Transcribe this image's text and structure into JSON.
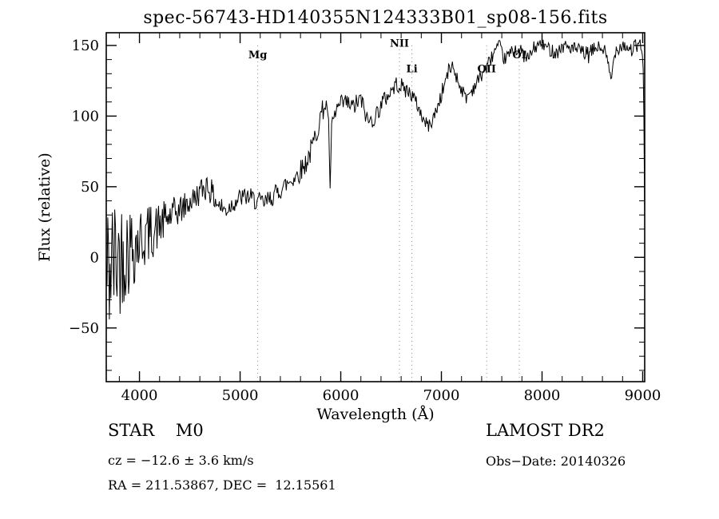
{
  "chart_data": {
    "type": "line",
    "title": "spec-56743-HD140355N124333B01_sp08-156.fits",
    "xlabel": "Wavelength (Å)",
    "ylabel": "Flux (relative)",
    "xlim": [
      3670,
      9020
    ],
    "ylim": [
      -88,
      159
    ],
    "xticks": [
      4000,
      5000,
      6000,
      7000,
      8000,
      9000
    ],
    "yticks": [
      -50,
      0,
      50,
      100,
      150
    ],
    "x_minor_step": 200,
    "y_minor_step": 10,
    "line_color": "#000000",
    "dotted_line_color": "#888888",
    "legend": "none",
    "grid": "off",
    "spectral_lines": [
      {
        "label": "Mg",
        "wavelength": 5175,
        "label_flux": 141
      },
      {
        "label": "NII",
        "wavelength": 6583,
        "label_flux": 149
      },
      {
        "label": "Li",
        "wavelength": 6707,
        "label_flux": 131
      },
      {
        "label": "OII",
        "wavelength": 7450,
        "label_flux": 131
      },
      {
        "label": "OI",
        "wavelength": 7774,
        "label_flux": 141
      }
    ],
    "noise_seed": 42,
    "spectrum_anchors": [
      [
        3670,
        -15,
        60
      ],
      [
        3720,
        -5,
        50
      ],
      [
        3780,
        0,
        45
      ],
      [
        3850,
        5,
        38
      ],
      [
        3920,
        8,
        32
      ],
      [
        4000,
        12,
        26
      ],
      [
        4080,
        16,
        22
      ],
      [
        4160,
        20,
        18
      ],
      [
        4250,
        26,
        14
      ],
      [
        4350,
        31,
        12
      ],
      [
        4450,
        36,
        10
      ],
      [
        4550,
        42,
        9
      ],
      [
        4620,
        48,
        9
      ],
      [
        4680,
        52,
        12
      ],
      [
        4740,
        42,
        8
      ],
      [
        4800,
        36,
        8
      ],
      [
        4860,
        33,
        7
      ],
      [
        4920,
        38,
        7
      ],
      [
        5000,
        42,
        7
      ],
      [
        5080,
        43,
        7
      ],
      [
        5160,
        40,
        7
      ],
      [
        5240,
        38,
        7
      ],
      [
        5320,
        43,
        7
      ],
      [
        5400,
        48,
        7
      ],
      [
        5480,
        53,
        7
      ],
      [
        5560,
        58,
        8
      ],
      [
        5640,
        65,
        8
      ],
      [
        5720,
        78,
        9
      ],
      [
        5790,
        98,
        9
      ],
      [
        5840,
        108,
        7
      ],
      [
        5875,
        105,
        6
      ],
      [
        5893,
        48,
        4
      ],
      [
        5910,
        92,
        6
      ],
      [
        5960,
        105,
        7
      ],
      [
        6040,
        110,
        7
      ],
      [
        6120,
        106,
        7
      ],
      [
        6200,
        112,
        7
      ],
      [
        6270,
        96,
        6
      ],
      [
        6330,
        98,
        6
      ],
      [
        6400,
        108,
        7
      ],
      [
        6480,
        116,
        6
      ],
      [
        6560,
        123,
        6
      ],
      [
        6620,
        120,
        6
      ],
      [
        6700,
        116,
        6
      ],
      [
        6760,
        108,
        5
      ],
      [
        6830,
        96,
        5
      ],
      [
        6880,
        93,
        5
      ],
      [
        6940,
        102,
        5
      ],
      [
        7000,
        115,
        6
      ],
      [
        7060,
        130,
        6
      ],
      [
        7110,
        136,
        5
      ],
      [
        7170,
        124,
        5
      ],
      [
        7240,
        113,
        5
      ],
      [
        7300,
        118,
        5
      ],
      [
        7380,
        127,
        5
      ],
      [
        7460,
        136,
        5
      ],
      [
        7530,
        146,
        5
      ],
      [
        7580,
        150,
        4
      ],
      [
        7620,
        140,
        4
      ],
      [
        7680,
        144,
        5
      ],
      [
        7740,
        148,
        5
      ],
      [
        7800,
        145,
        5
      ],
      [
        7860,
        140,
        6
      ],
      [
        7920,
        148,
        5
      ],
      [
        7980,
        151,
        4
      ],
      [
        8060,
        148,
        5
      ],
      [
        8140,
        145,
        5
      ],
      [
        8220,
        150,
        5
      ],
      [
        8300,
        148,
        5
      ],
      [
        8380,
        146,
        5
      ],
      [
        8460,
        143,
        6
      ],
      [
        8540,
        149,
        5
      ],
      [
        8620,
        147,
        5
      ],
      [
        8690,
        125,
        6
      ],
      [
        8720,
        146,
        5
      ],
      [
        8800,
        151,
        5
      ],
      [
        8880,
        147,
        6
      ],
      [
        8960,
        150,
        6
      ],
      [
        9000,
        147,
        6
      ],
      [
        9012,
        100,
        5
      ],
      [
        9020,
        28,
        3
      ]
    ]
  },
  "annotations": {
    "class_line": "STAR    M0",
    "survey": "LAMOST DR2",
    "cz_line": "cz = −12.6 ± 3.6 km/s",
    "obs_date": "Obs−Date: 20140326",
    "radec_line": "RA = 211.53867, DEC =  12.15561"
  }
}
